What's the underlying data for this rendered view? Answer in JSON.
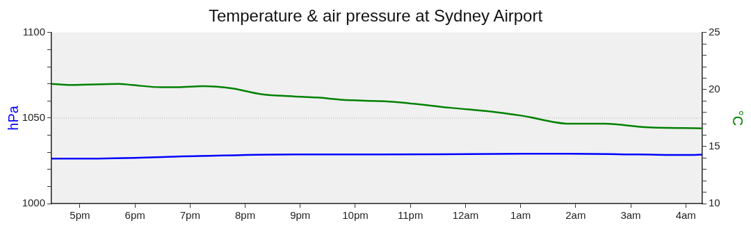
{
  "chart_data": {
    "type": "line",
    "title": "Temperature & air pressure at Sydney Airport",
    "ylabel": "hPa",
    "y2label": "°C",
    "xlim": [
      "--01-01T16:29",
      "--01-02T04:18"
    ],
    "xticks": [
      {
        "value": "--01-01T17:00",
        "label": "5pm"
      },
      {
        "value": "--01-01T18:00",
        "label": "6pm"
      },
      {
        "value": "--01-01T19:00",
        "label": "7pm"
      },
      {
        "value": "--01-01T20:00",
        "label": "8pm"
      },
      {
        "value": "--01-01T21:00",
        "label": "9pm"
      },
      {
        "value": "--01-01T22:00",
        "label": "10pm"
      },
      {
        "value": "--01-01T23:00",
        "label": "11pm"
      },
      {
        "value": "--01-02T00:00",
        "label": "12am"
      },
      {
        "value": "--01-02T01:00",
        "label": "1am"
      },
      {
        "value": "--01-02T02:00",
        "label": "2am"
      },
      {
        "value": "--01-02T03:00",
        "label": "3am"
      },
      {
        "value": "--01-02T04:00",
        "label": "4am"
      }
    ],
    "ylim": [
      1000,
      1100
    ],
    "yticks": [
      1000,
      {
        "value": 1010,
        "label": null
      },
      {
        "value": 1020,
        "label": null
      },
      {
        "value": 1030,
        "label": null
      },
      {
        "value": 1040,
        "label": null
      },
      1050,
      {
        "value": 1060,
        "label": null
      },
      {
        "value": 1070,
        "label": null
      },
      {
        "value": 1080,
        "label": null
      },
      {
        "value": 1090,
        "label": null
      },
      1100
    ],
    "y2lim": [
      10,
      25
    ],
    "y2ticks": [
      10,
      {
        "value": 11,
        "label": null
      },
      {
        "value": 12,
        "label": null
      },
      {
        "value": 13,
        "label": null
      },
      {
        "value": 14,
        "label": null
      },
      15,
      {
        "value": 16,
        "label": null
      },
      {
        "value": 17,
        "label": null
      },
      {
        "value": 18,
        "label": null
      },
      {
        "value": 19,
        "label": null
      },
      20,
      {
        "value": 21,
        "label": null
      },
      {
        "value": 22,
        "label": null
      },
      {
        "value": 23,
        "label": null
      },
      {
        "value": 24,
        "label": null
      },
      25
    ],
    "grid": false,
    "legend": false,
    "marker": "none",
    "line_style": "solid",
    "ref_lines": [
      {
        "axis": "y",
        "value": 1050,
        "color": "#aaaaaa",
        "line_style": "dotted"
      }
    ],
    "series": [
      {
        "color": "#0000ff",
        "x": [
          "--01-01T16:29",
          "--01-01T17:05",
          "--01-01T19:10",
          "--01-01T20:53",
          "--01-01T22:20",
          "--01-02T01:02",
          "--01-02T01:53",
          "--01-02T03:10",
          "--01-02T04:02",
          "--01-02T04:18"
        ],
        "values": [
          1026.3,
          1026.3,
          1027.8,
          1028.7,
          1028.7,
          1029.1,
          1029.1,
          1028.7,
          1028.4,
          1028.6
        ]
      },
      {
        "color": "#008000",
        "axis": "y2",
        "x": [
          "--01-01T16:29",
          "--01-01T16:50",
          "--01-01T17:42",
          "--01-01T17:57",
          "--01-01T18:28",
          "--01-01T18:46",
          "--01-01T19:14",
          "--01-01T19:46",
          "--01-01T20:17",
          "--01-01T20:53",
          "--01-01T21:18",
          "--01-01T21:47",
          "--01-01T22:20",
          "--01-01T22:45",
          "--01-01T23:44",
          "--01-02T00:35",
          "--01-02T01:02",
          "--01-02T01:53",
          "--01-02T02:32",
          "--01-02T03:16",
          "--01-02T04:18"
        ],
        "values": [
          20.5,
          20.4,
          20.5,
          20.4,
          20.2,
          20.2,
          20.3,
          20.1,
          19.6,
          19.4,
          19.3,
          19.1,
          19.0,
          18.9,
          18.4,
          18.0,
          17.7,
          17.0,
          17.0,
          16.7,
          16.6
        ]
      }
    ]
  }
}
